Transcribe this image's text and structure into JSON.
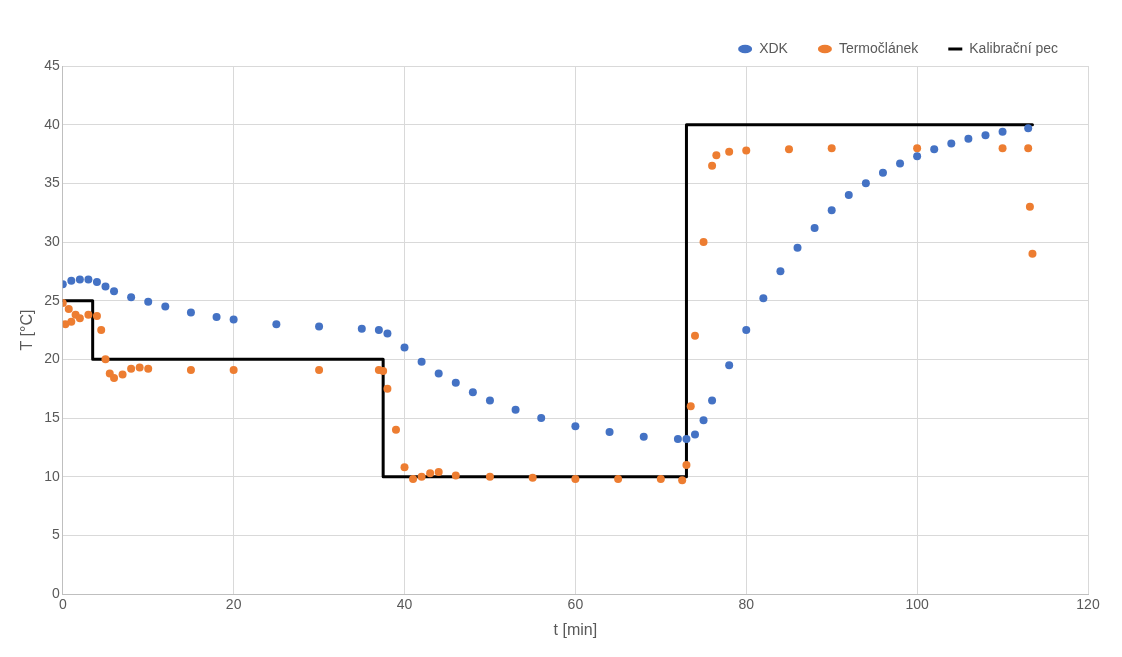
{
  "chart_data": {
    "type": "scatter",
    "xlabel": "t [min]",
    "ylabel": "T [°C]",
    "xlim": [
      0,
      120
    ],
    "xticks": [
      0,
      20,
      40,
      60,
      80,
      100,
      120
    ],
    "ylim": [
      0,
      45
    ],
    "yticks": [
      0,
      5,
      10,
      15,
      20,
      25,
      30,
      35,
      40,
      45
    ],
    "grid": true,
    "legend": "top right",
    "series": [
      {
        "name": "XDK",
        "type": "scatter",
        "marker": "circle",
        "color": "#4472c4",
        "x": [
          0,
          1,
          2,
          3,
          4,
          5,
          6,
          8,
          10,
          12,
          15,
          18,
          20,
          25,
          30,
          35,
          37,
          38,
          40,
          42,
          44,
          46,
          48,
          50,
          53,
          56,
          60,
          64,
          68,
          72,
          73,
          74,
          75,
          76,
          78,
          80,
          82,
          84,
          86,
          88,
          90,
          92,
          94,
          96,
          98,
          100,
          102,
          104,
          106,
          108,
          110,
          113
        ],
        "values": [
          26.4,
          26.7,
          26.8,
          26.8,
          26.6,
          26.2,
          25.8,
          25.3,
          24.9,
          24.5,
          24,
          23.6,
          23.4,
          23,
          22.8,
          22.6,
          22.5,
          22.2,
          21,
          19.8,
          18.8,
          18,
          17.2,
          16.5,
          15.7,
          15,
          14.3,
          13.8,
          13.4,
          13.2,
          13.2,
          13.6,
          14.8,
          16.5,
          19.5,
          22.5,
          25.2,
          27.5,
          29.5,
          31.2,
          32.7,
          34,
          35,
          35.9,
          36.7,
          37.3,
          37.9,
          38.4,
          38.8,
          39.1,
          39.4,
          39.7
        ]
      },
      {
        "name": "Termočlánek",
        "type": "scatter",
        "marker": "circle",
        "color": "#ed7d31",
        "x": [
          0,
          0.3,
          0.7,
          1,
          1.5,
          2,
          3,
          4,
          4.5,
          5,
          5.5,
          6,
          7,
          8,
          9,
          10,
          15,
          20,
          30,
          37,
          37.5,
          38,
          39,
          40,
          41,
          42,
          43,
          44,
          46,
          50,
          55,
          60,
          65,
          70,
          72.5,
          73,
          73.5,
          74,
          75,
          76,
          76.5,
          78,
          80,
          85,
          90,
          100,
          110,
          113,
          113.2,
          113.5
        ],
        "values": [
          24.8,
          23,
          24.3,
          23.2,
          23.8,
          23.5,
          23.8,
          23.7,
          22.5,
          20,
          18.8,
          18.4,
          18.7,
          19.2,
          19.3,
          19.2,
          19.1,
          19.1,
          19.1,
          19.1,
          19,
          17.5,
          14,
          10.8,
          9.8,
          10,
          10.3,
          10.4,
          10.1,
          10,
          9.9,
          9.8,
          9.8,
          9.8,
          9.7,
          11,
          16,
          22,
          30,
          36.5,
          37.4,
          37.7,
          37.8,
          37.9,
          38,
          38,
          38,
          38,
          33,
          29
        ]
      },
      {
        "name": "Kalibrační pec",
        "type": "line",
        "color": "#000000",
        "x": [
          0,
          3.5,
          3.5,
          37.5,
          37.5,
          73,
          73,
          113.5
        ],
        "values": [
          25,
          25,
          20,
          20,
          10,
          10,
          40,
          40
        ]
      }
    ]
  }
}
